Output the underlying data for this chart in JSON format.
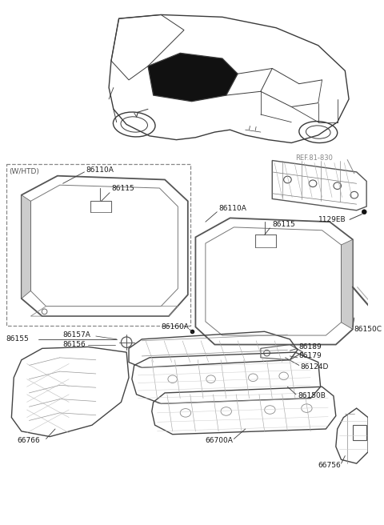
{
  "bg_color": "#ffffff",
  "line_color": "#3a3a3a",
  "label_color": "#1a1a1a",
  "ref_color": "#888888",
  "dashed_box_color": "#888888",
  "figsize": [
    4.8,
    6.56
  ],
  "dpi": 100,
  "xlim": [
    0,
    480
  ],
  "ylim": [
    0,
    656
  ]
}
